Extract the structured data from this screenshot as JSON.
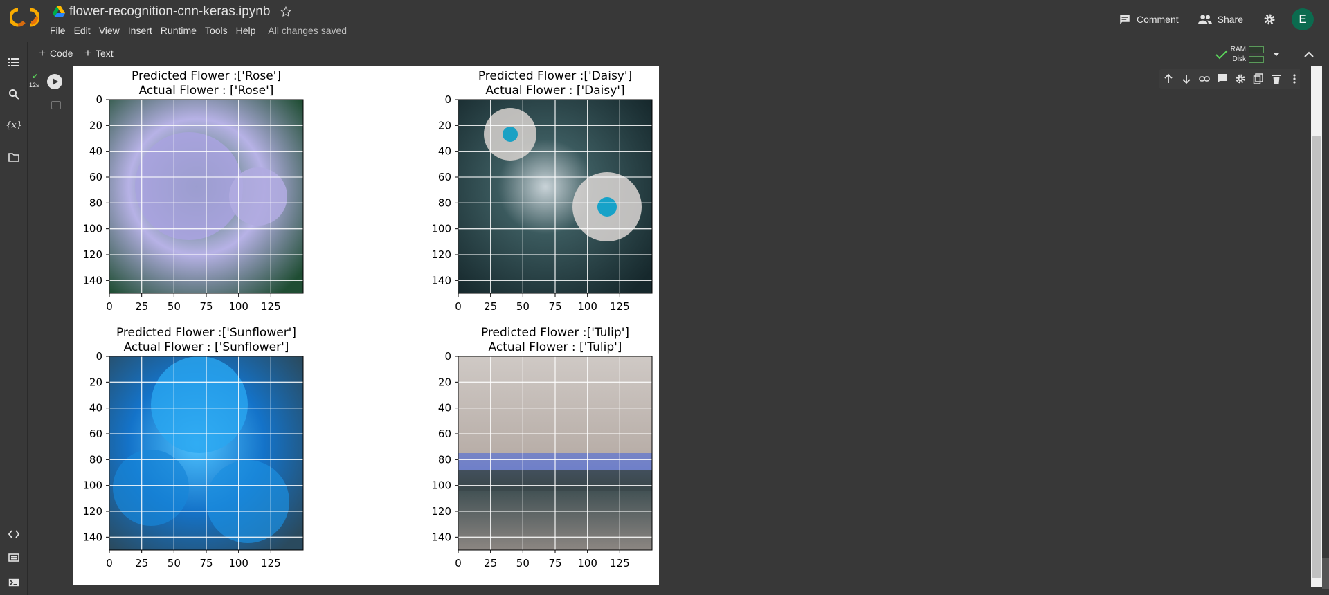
{
  "header": {
    "title": "flower-recognition-cnn-keras.ipynb",
    "menu": [
      "File",
      "Edit",
      "View",
      "Insert",
      "Runtime",
      "Tools",
      "Help"
    ],
    "saved_status": "All changes saved",
    "comment_label": "Comment",
    "share_label": "Share",
    "avatar_letter": "E"
  },
  "toolbar": {
    "code_label": "Code",
    "text_label": "Text",
    "ram_label": "RAM",
    "disk_label": "Disk"
  },
  "cell": {
    "exec_time": "12s"
  },
  "colors": {
    "accent_orange": "#f9ab00",
    "avatar_green": "#0b6b4f"
  },
  "chart_data": [
    {
      "type": "image",
      "title_lines": [
        "Predicted Flower :['Rose']",
        "Actual Flower : ['Rose']"
      ],
      "xticks": [
        "0",
        "25",
        "50",
        "75",
        "100",
        "125"
      ],
      "yticks": [
        "0",
        "20",
        "40",
        "60",
        "80",
        "100",
        "120",
        "140"
      ],
      "xlim": [
        0,
        150
      ],
      "ylim": [
        150,
        0
      ],
      "grid": true
    },
    {
      "type": "image",
      "title_lines": [
        "Predicted Flower :['Daisy']",
        "Actual Flower : ['Daisy']"
      ],
      "xticks": [
        "0",
        "25",
        "50",
        "75",
        "100",
        "125"
      ],
      "yticks": [
        "0",
        "20",
        "40",
        "60",
        "80",
        "100",
        "120",
        "140"
      ],
      "xlim": [
        0,
        150
      ],
      "ylim": [
        150,
        0
      ],
      "grid": true
    },
    {
      "type": "image",
      "title_lines": [
        "Predicted Flower :['Sunflower']",
        "Actual Flower : ['Sunflower']"
      ],
      "xticks": [
        "0",
        "25",
        "50",
        "75",
        "100",
        "125"
      ],
      "yticks": [
        "0",
        "20",
        "40",
        "60",
        "80",
        "100",
        "120",
        "140"
      ],
      "xlim": [
        0,
        150
      ],
      "ylim": [
        150,
        0
      ],
      "grid": true
    },
    {
      "type": "image",
      "title_lines": [
        "Predicted Flower :['Tulip']",
        "Actual Flower : ['Tulip']"
      ],
      "xticks": [
        "0",
        "25",
        "50",
        "75",
        "100",
        "125"
      ],
      "yticks": [
        "0",
        "20",
        "40",
        "60",
        "80",
        "100",
        "120",
        "140"
      ],
      "xlim": [
        0,
        150
      ],
      "ylim": [
        150,
        0
      ],
      "grid": true
    }
  ]
}
